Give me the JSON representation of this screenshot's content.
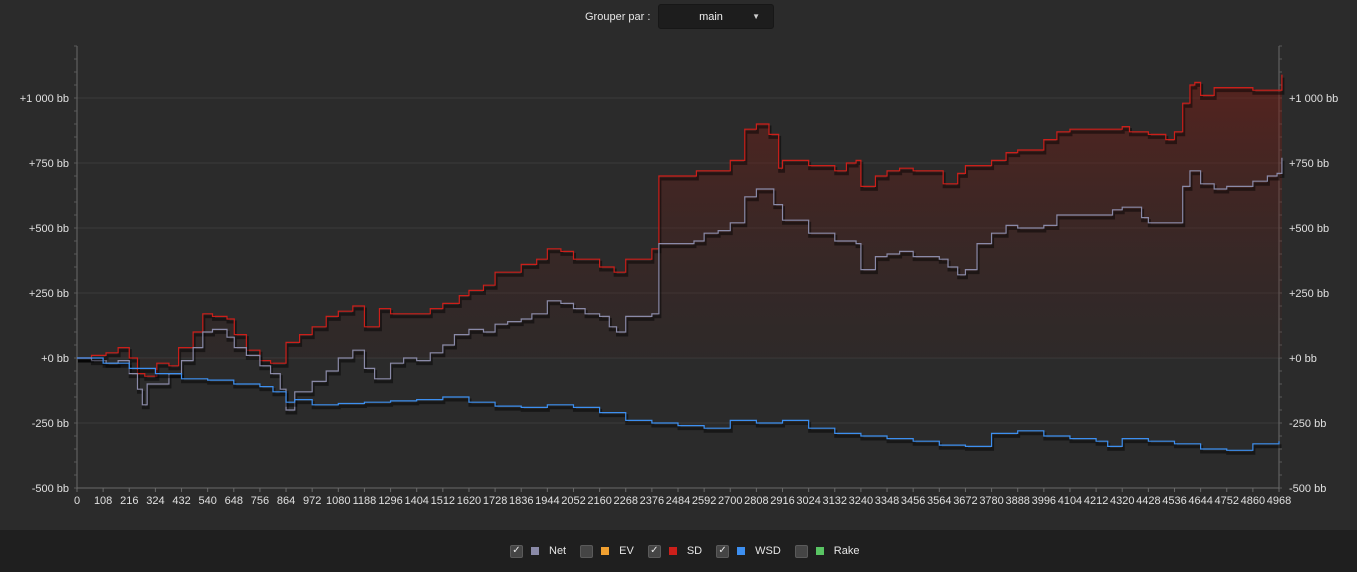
{
  "toolbar": {
    "group_label": "Grouper par :",
    "group_value": "main",
    "chevron_icon": "triangle-down-icon"
  },
  "legend": [
    {
      "name": "Net",
      "color": "#8a8aa8",
      "checked": true
    },
    {
      "name": "EV",
      "color": "#f0a030",
      "checked": false
    },
    {
      "name": "SD",
      "color": "#cc1f1a",
      "checked": true
    },
    {
      "name": "WSD",
      "color": "#3d8ff0",
      "checked": true
    },
    {
      "name": "Rake",
      "color": "#59c463",
      "checked": false
    }
  ],
  "chart_data": {
    "type": "line",
    "x_ticks": [
      0,
      108,
      216,
      324,
      432,
      540,
      648,
      756,
      864,
      972,
      1080,
      1188,
      1296,
      1404,
      1512,
      1620,
      1728,
      1836,
      1944,
      2052,
      2160,
      2268,
      2376,
      2484,
      2592,
      2700,
      2808,
      2916,
      3024,
      3132,
      3240,
      3348,
      3456,
      3564,
      3672,
      3780,
      3888,
      3996,
      4104,
      4212,
      4320,
      4428,
      4536,
      4644,
      4752,
      4860,
      4968
    ],
    "xlim": [
      0,
      4968
    ],
    "ylim": [
      -500,
      1200
    ],
    "y_ticks": [
      {
        "value": -500,
        "label": "-500 bb"
      },
      {
        "value": -250,
        "label": "-250 bb"
      },
      {
        "value": 0,
        "label": "+0 bb"
      },
      {
        "value": 250,
        "label": "+250 bb"
      },
      {
        "value": 500,
        "label": "+500 bb"
      },
      {
        "value": 750,
        "label": "+750 bb"
      },
      {
        "value": 1000,
        "label": "+1 000 bb"
      }
    ],
    "grid": true,
    "legend_position": "bottom",
    "series": [
      {
        "name": "SD",
        "color": "#cc1f1a",
        "fill": true,
        "points": [
          [
            0,
            0
          ],
          [
            60,
            10
          ],
          [
            120,
            20
          ],
          [
            170,
            40
          ],
          [
            216,
            0
          ],
          [
            250,
            -60
          ],
          [
            280,
            -70
          ],
          [
            330,
            -20
          ],
          [
            380,
            -30
          ],
          [
            420,
            40
          ],
          [
            480,
            100
          ],
          [
            520,
            170
          ],
          [
            560,
            160
          ],
          [
            620,
            150
          ],
          [
            650,
            90
          ],
          [
            700,
            30
          ],
          [
            756,
            -10
          ],
          [
            800,
            -20
          ],
          [
            864,
            60
          ],
          [
            920,
            90
          ],
          [
            972,
            120
          ],
          [
            1030,
            160
          ],
          [
            1080,
            180
          ],
          [
            1140,
            200
          ],
          [
            1188,
            120
          ],
          [
            1250,
            190
          ],
          [
            1296,
            170
          ],
          [
            1404,
            170
          ],
          [
            1460,
            190
          ],
          [
            1512,
            210
          ],
          [
            1580,
            240
          ],
          [
            1620,
            260
          ],
          [
            1680,
            280
          ],
          [
            1728,
            330
          ],
          [
            1800,
            330
          ],
          [
            1836,
            360
          ],
          [
            1900,
            380
          ],
          [
            1944,
            420
          ],
          [
            2000,
            410
          ],
          [
            2052,
            380
          ],
          [
            2160,
            350
          ],
          [
            2220,
            330
          ],
          [
            2268,
            380
          ],
          [
            2300,
            380
          ],
          [
            2376,
            420
          ],
          [
            2400,
            420
          ],
          [
            2405,
            700
          ],
          [
            2500,
            700
          ],
          [
            2560,
            720
          ],
          [
            2650,
            720
          ],
          [
            2700,
            760
          ],
          [
            2760,
            880
          ],
          [
            2808,
            900
          ],
          [
            2860,
            860
          ],
          [
            2900,
            730
          ],
          [
            2916,
            760
          ],
          [
            3024,
            740
          ],
          [
            3132,
            720
          ],
          [
            3180,
            750
          ],
          [
            3220,
            760
          ],
          [
            3240,
            660
          ],
          [
            3300,
            700
          ],
          [
            3348,
            720
          ],
          [
            3400,
            730
          ],
          [
            3456,
            720
          ],
          [
            3564,
            720
          ],
          [
            3580,
            670
          ],
          [
            3640,
            710
          ],
          [
            3672,
            740
          ],
          [
            3780,
            760
          ],
          [
            3840,
            790
          ],
          [
            3888,
            800
          ],
          [
            3996,
            840
          ],
          [
            4050,
            870
          ],
          [
            4104,
            880
          ],
          [
            4212,
            880
          ],
          [
            4320,
            890
          ],
          [
            4350,
            870
          ],
          [
            4428,
            860
          ],
          [
            4500,
            840
          ],
          [
            4536,
            870
          ],
          [
            4570,
            980
          ],
          [
            4600,
            1050
          ],
          [
            4620,
            1060
          ],
          [
            4644,
            1010
          ],
          [
            4700,
            1040
          ],
          [
            4752,
            1040
          ],
          [
            4860,
            1030
          ],
          [
            4920,
            1030
          ],
          [
            4968,
            1030
          ],
          [
            4980,
            1090
          ]
        ]
      },
      {
        "name": "Net",
        "color": "#8a8aa8",
        "fill": false,
        "points": [
          [
            0,
            0
          ],
          [
            60,
            -10
          ],
          [
            120,
            -20
          ],
          [
            170,
            -10
          ],
          [
            216,
            -60
          ],
          [
            250,
            -120
          ],
          [
            270,
            -180
          ],
          [
            290,
            -100
          ],
          [
            324,
            -100
          ],
          [
            380,
            -60
          ],
          [
            432,
            -10
          ],
          [
            480,
            40
          ],
          [
            520,
            100
          ],
          [
            560,
            110
          ],
          [
            620,
            80
          ],
          [
            650,
            40
          ],
          [
            700,
            10
          ],
          [
            756,
            -30
          ],
          [
            800,
            -60
          ],
          [
            840,
            -120
          ],
          [
            864,
            -200
          ],
          [
            900,
            -130
          ],
          [
            972,
            -90
          ],
          [
            1030,
            -50
          ],
          [
            1080,
            0
          ],
          [
            1140,
            30
          ],
          [
            1188,
            -40
          ],
          [
            1230,
            -80
          ],
          [
            1296,
            -20
          ],
          [
            1350,
            0
          ],
          [
            1404,
            -10
          ],
          [
            1460,
            20
          ],
          [
            1512,
            50
          ],
          [
            1560,
            90
          ],
          [
            1620,
            110
          ],
          [
            1680,
            100
          ],
          [
            1728,
            130
          ],
          [
            1780,
            140
          ],
          [
            1836,
            150
          ],
          [
            1880,
            170
          ],
          [
            1944,
            220
          ],
          [
            2000,
            210
          ],
          [
            2052,
            190
          ],
          [
            2100,
            170
          ],
          [
            2160,
            160
          ],
          [
            2200,
            120
          ],
          [
            2230,
            100
          ],
          [
            2268,
            160
          ],
          [
            2300,
            160
          ],
          [
            2376,
            170
          ],
          [
            2400,
            170
          ],
          [
            2405,
            440
          ],
          [
            2484,
            440
          ],
          [
            2550,
            450
          ],
          [
            2592,
            480
          ],
          [
            2650,
            490
          ],
          [
            2700,
            520
          ],
          [
            2760,
            620
          ],
          [
            2808,
            650
          ],
          [
            2850,
            650
          ],
          [
            2880,
            590
          ],
          [
            2916,
            530
          ],
          [
            3024,
            480
          ],
          [
            3132,
            450
          ],
          [
            3180,
            450
          ],
          [
            3220,
            440
          ],
          [
            3240,
            340
          ],
          [
            3300,
            390
          ],
          [
            3348,
            400
          ],
          [
            3400,
            410
          ],
          [
            3456,
            390
          ],
          [
            3564,
            380
          ],
          [
            3600,
            350
          ],
          [
            3640,
            320
          ],
          [
            3672,
            340
          ],
          [
            3720,
            440
          ],
          [
            3780,
            480
          ],
          [
            3840,
            510
          ],
          [
            3888,
            500
          ],
          [
            3996,
            510
          ],
          [
            4050,
            550
          ],
          [
            4104,
            550
          ],
          [
            4212,
            550
          ],
          [
            4280,
            570
          ],
          [
            4320,
            580
          ],
          [
            4400,
            540
          ],
          [
            4428,
            520
          ],
          [
            4500,
            520
          ],
          [
            4536,
            520
          ],
          [
            4570,
            660
          ],
          [
            4600,
            720
          ],
          [
            4644,
            670
          ],
          [
            4700,
            650
          ],
          [
            4752,
            660
          ],
          [
            4860,
            680
          ],
          [
            4920,
            700
          ],
          [
            4960,
            710
          ],
          [
            4980,
            770
          ]
        ]
      },
      {
        "name": "WSD",
        "color": "#3d8ff0",
        "fill": false,
        "points": [
          [
            0,
            0
          ],
          [
            108,
            -20
          ],
          [
            216,
            -40
          ],
          [
            324,
            -60
          ],
          [
            432,
            -80
          ],
          [
            540,
            -85
          ],
          [
            648,
            -100
          ],
          [
            756,
            -110
          ],
          [
            810,
            -130
          ],
          [
            864,
            -170
          ],
          [
            900,
            -160
          ],
          [
            972,
            -180
          ],
          [
            1080,
            -175
          ],
          [
            1188,
            -170
          ],
          [
            1296,
            -165
          ],
          [
            1404,
            -160
          ],
          [
            1512,
            -150
          ],
          [
            1620,
            -170
          ],
          [
            1728,
            -185
          ],
          [
            1836,
            -190
          ],
          [
            1944,
            -180
          ],
          [
            2052,
            -190
          ],
          [
            2160,
            -210
          ],
          [
            2268,
            -240
          ],
          [
            2376,
            -250
          ],
          [
            2484,
            -260
          ],
          [
            2592,
            -270
          ],
          [
            2700,
            -240
          ],
          [
            2808,
            -250
          ],
          [
            2916,
            -240
          ],
          [
            3024,
            -270
          ],
          [
            3132,
            -290
          ],
          [
            3240,
            -300
          ],
          [
            3348,
            -310
          ],
          [
            3456,
            -320
          ],
          [
            3564,
            -335
          ],
          [
            3672,
            -340
          ],
          [
            3780,
            -290
          ],
          [
            3888,
            -280
          ],
          [
            3996,
            -300
          ],
          [
            4104,
            -310
          ],
          [
            4212,
            -320
          ],
          [
            4260,
            -340
          ],
          [
            4320,
            -310
          ],
          [
            4428,
            -320
          ],
          [
            4536,
            -330
          ],
          [
            4644,
            -350
          ],
          [
            4752,
            -355
          ],
          [
            4860,
            -330
          ],
          [
            4968,
            -320
          ]
        ]
      }
    ]
  }
}
